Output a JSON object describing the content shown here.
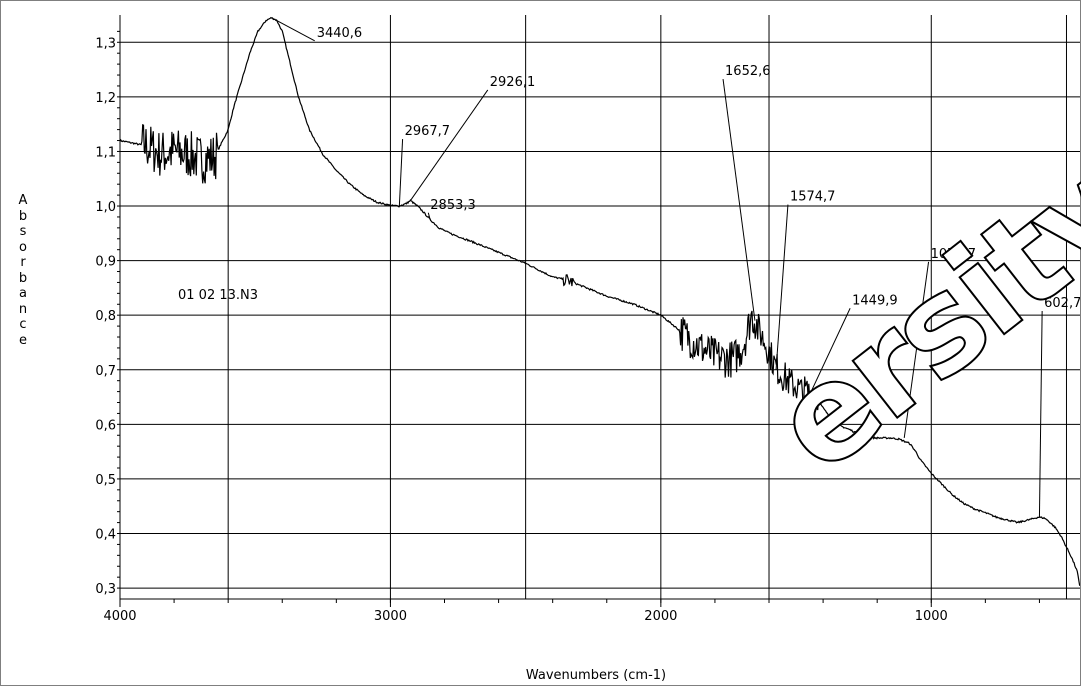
{
  "chart_data": {
    "type": "line",
    "title": "",
    "xlabel": "Wavenumbers (cm-1)",
    "ylabel": "Absorbance",
    "xlim": [
      4000,
      450
    ],
    "ylim": [
      0.28,
      1.35
    ],
    "x_reversed": true,
    "grid": true,
    "x_ticks": [
      4000,
      3000,
      2000,
      1000
    ],
    "x_tick_labels": [
      "4000",
      "3000",
      "2000",
      "1000"
    ],
    "x_gridlines": [
      4000,
      3600,
      3000,
      2500,
      2000,
      1600,
      1000,
      500
    ],
    "y_ticks": [
      0.3,
      0.4,
      0.5,
      0.6,
      0.7,
      0.8,
      0.9,
      1.0,
      1.1,
      1.2,
      1.3
    ],
    "y_tick_labels": [
      "0,3",
      "0,4",
      "0,5",
      "0,6",
      "0,7",
      "0,8",
      "0,9",
      "1,0",
      "1,1",
      "1,2",
      "1,3"
    ],
    "sample_label": "01 02 13.N3",
    "line_color": "#000000",
    "series": [
      {
        "x": [
          4000,
          3950,
          3900,
          3850,
          3800,
          3750,
          3700,
          3650,
          3600,
          3580,
          3550,
          3520,
          3490,
          3460,
          3440,
          3420,
          3400,
          3380,
          3360,
          3340,
          3300,
          3250,
          3200,
          3150,
          3100,
          3050,
          3000,
          2967,
          2940,
          2926,
          2900,
          2880,
          2853,
          2820,
          2780,
          2700,
          2600,
          2500,
          2400,
          2350,
          2300,
          2200,
          2100,
          2000,
          1950,
          1900,
          1850,
          1800,
          1760,
          1730,
          1700,
          1680,
          1665,
          1652,
          1640,
          1620,
          1600,
          1580,
          1560,
          1540,
          1520,
          1500,
          1480,
          1460,
          1440,
          1420,
          1400,
          1370,
          1340,
          1300,
          1270,
          1240,
          1200,
          1150,
          1120,
          1080,
          1060,
          1040,
          1000,
          960,
          920,
          880,
          840,
          800,
          760,
          720,
          680,
          640,
          603,
          580,
          560,
          540,
          520,
          500,
          480,
          460,
          450
        ],
        "y": [
          1.12,
          1.115,
          1.11,
          1.095,
          1.1,
          1.095,
          1.085,
          1.09,
          1.14,
          1.18,
          1.23,
          1.28,
          1.32,
          1.34,
          1.345,
          1.34,
          1.32,
          1.28,
          1.24,
          1.2,
          1.14,
          1.095,
          1.065,
          1.04,
          1.02,
          1.007,
          1.001,
          1.0,
          1.005,
          1.01,
          1.0,
          0.99,
          0.975,
          0.96,
          0.95,
          0.935,
          0.915,
          0.895,
          0.87,
          0.865,
          0.855,
          0.835,
          0.82,
          0.8,
          0.78,
          0.76,
          0.74,
          0.725,
          0.72,
          0.72,
          0.74,
          0.77,
          0.8,
          0.79,
          0.775,
          0.755,
          0.735,
          0.71,
          0.695,
          0.685,
          0.675,
          0.67,
          0.66,
          0.66,
          0.655,
          0.645,
          0.63,
          0.61,
          0.598,
          0.59,
          0.582,
          0.576,
          0.575,
          0.575,
          0.573,
          0.565,
          0.552,
          0.535,
          0.51,
          0.49,
          0.47,
          0.455,
          0.445,
          0.438,
          0.43,
          0.425,
          0.42,
          0.425,
          0.43,
          0.428,
          0.42,
          0.41,
          0.395,
          0.375,
          0.355,
          0.33,
          0.3
        ]
      }
    ],
    "noise_regions": [
      {
        "from": 3920,
        "to": 3640,
        "amp": 0.045
      },
      {
        "from": 2360,
        "to": 2320,
        "amp": 0.012
      },
      {
        "from": 1930,
        "to": 1640,
        "amp": 0.035
      },
      {
        "from": 1640,
        "to": 1420,
        "amp": 0.03
      }
    ],
    "annotations": [
      {
        "text": "3440,6",
        "peak": [
          3440,
          1.345
        ],
        "label": [
          3280,
          1.31
        ]
      },
      {
        "text": "2967,7",
        "peak": [
          2967,
          1.0
        ],
        "label": [
          2955,
          1.13
        ]
      },
      {
        "text": "2926,1",
        "peak": [
          2926,
          1.01
        ],
        "label": [
          2640,
          1.22
        ]
      },
      {
        "text": "2853,3",
        "peak": [
          2853,
          0.975
        ],
        "label": [
          2860,
          0.995
        ]
      },
      {
        "text": "1652,6",
        "peak": [
          1652,
          0.79
        ],
        "label": [
          1770,
          1.24
        ]
      },
      {
        "text": "1574,7",
        "peak": [
          1574,
          0.7
        ],
        "label": [
          1530,
          1.01
        ]
      },
      {
        "text": "1449,9",
        "peak": [
          1449,
          0.655
        ],
        "label": [
          1300,
          0.82
        ]
      },
      {
        "text": "1075,7",
        "peak": [
          1100,
          0.575
        ],
        "label": [
          1010,
          0.905
        ]
      },
      {
        "text": "602,7",
        "peak": [
          600,
          0.43
        ],
        "label": [
          590,
          0.815
        ]
      }
    ]
  },
  "watermark": "ersity"
}
